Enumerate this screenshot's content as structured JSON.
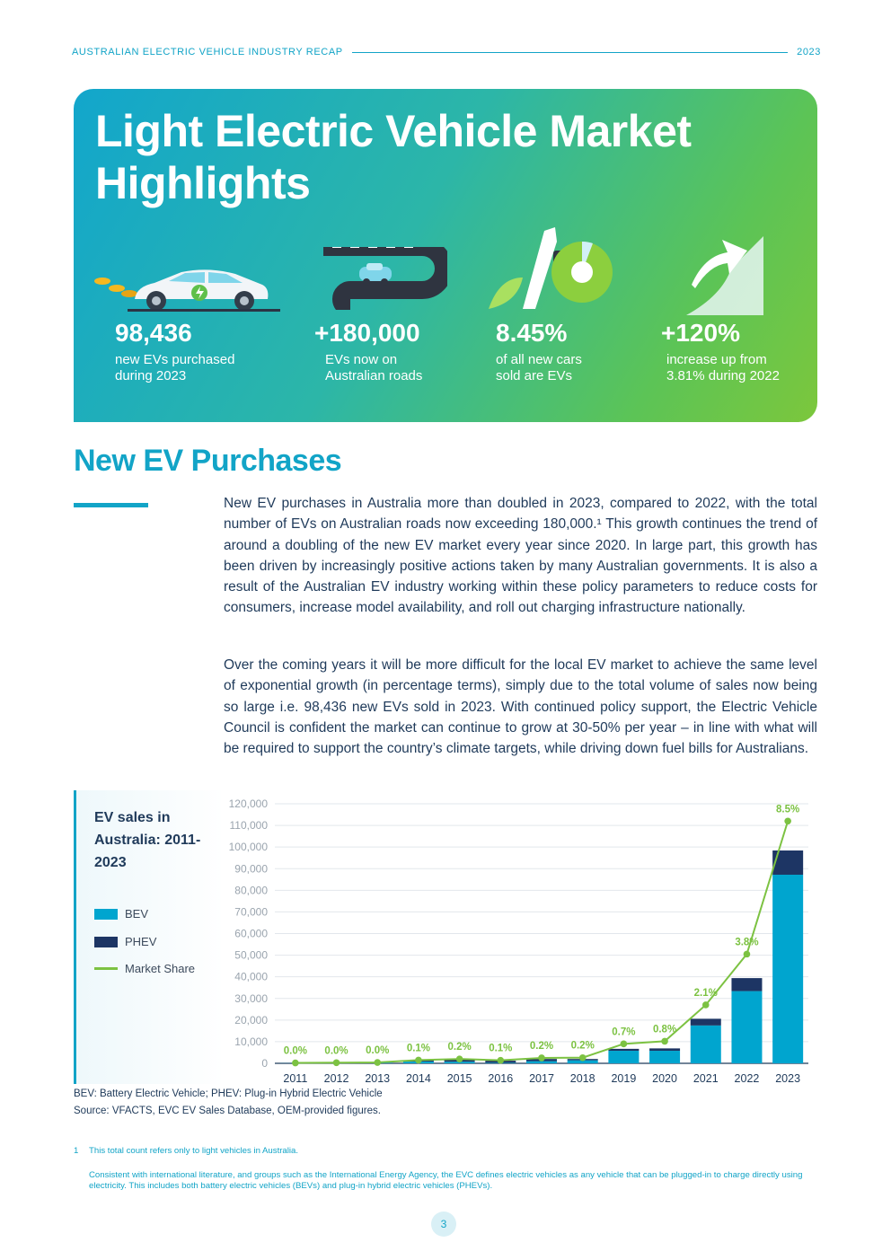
{
  "header": {
    "title": "AUSTRALIAN ELECTRIC VEHICLE INDUSTRY RECAP",
    "year": "2023"
  },
  "hero": {
    "title": "Light Electric Vehicle Market Highlights",
    "stats": [
      {
        "value": "98,436",
        "line1": "new EVs purchased",
        "line2": "during 2023",
        "icon": "car-icon"
      },
      {
        "value": "+180,000",
        "line1": "EVs now on",
        "line2": "Australian roads",
        "icon": "road-icon"
      },
      {
        "value": "8.45%",
        "line1": "of all new cars",
        "line2": "sold are EVs",
        "icon": "pie-chart-icon"
      },
      {
        "value": "+120%",
        "line1": "increase up from",
        "line2": "3.81% during 2022",
        "icon": "growth-arrow-icon"
      }
    ]
  },
  "section": {
    "title": "New EV Purchases",
    "para1": "New EV purchases in Australia more than doubled in 2023, compared to 2022, with the total number of EVs on Australian roads now exceeding 180,000.¹ This growth continues the trend of around a doubling of the new EV market every year since 2020. In large part, this growth has been driven by increasingly positive actions taken by many Australian governments. It is also a result of the Australian EV industry working within these policy parameters to reduce costs for consumers, increase model availability, and roll out charging infrastructure nationally.",
    "para2": "Over the coming years it will be more difficult for the local EV market to achieve the same level of exponential growth (in percentage terms), simply due to the total volume of sales now being so large i.e. 98,436 new EVs sold in 2023. With continued policy support, the Electric Vehicle Council is confident the market can continue to grow at 30-50% per year – in line with what will be required to support the country’s climate targets, while driving down fuel bills for Australians."
  },
  "chart_panel": {
    "title": "EV sales in Australia: 2011-2023",
    "legend": [
      {
        "label": "BEV",
        "color": "#00a5cf"
      },
      {
        "label": "PHEV",
        "color": "#1d3564"
      },
      {
        "label": "Market Share",
        "color": "#7cc242"
      }
    ]
  },
  "chart_data": {
    "type": "bar",
    "title": "EV sales in Australia: 2011-2023",
    "categories": [
      "2011",
      "2012",
      "2013",
      "2014",
      "2015",
      "2016",
      "2017",
      "2018",
      "2019",
      "2020",
      "2021",
      "2022",
      "2023"
    ],
    "stacked": true,
    "series": [
      {
        "name": "BEV",
        "color": "#00a5cf",
        "values": [
          50,
          250,
          200,
          800,
          750,
          250,
          1000,
          1400,
          5800,
          5800,
          17500,
          33400,
          87200
        ]
      },
      {
        "name": "PHEV",
        "color": "#1d3564",
        "values": [
          10,
          30,
          100,
          600,
          1000,
          950,
          1000,
          600,
          900,
          1100,
          3100,
          6000,
          11200
        ]
      }
    ],
    "line": {
      "name": "Market Share",
      "color": "#7cc242",
      "labels": [
        "0.0%",
        "0.0%",
        "0.0%",
        "0.1%",
        "0.2%",
        "0.1%",
        "0.2%",
        "0.2%",
        "0.7%",
        "0.8%",
        "2.1%",
        "3.8%",
        "8.5%"
      ],
      "plot_values": [
        200,
        300,
        400,
        1500,
        2000,
        1400,
        2500,
        2600,
        9000,
        10200,
        27000,
        50500,
        112000
      ]
    },
    "y_ticks": [
      "0",
      "10,000",
      "20,000",
      "30,000",
      "40,000",
      "50,000",
      "60,000",
      "70,000",
      "80,000",
      "90,000",
      "100,000",
      "110,000",
      "120,000"
    ],
    "ylim": [
      0,
      120000
    ],
    "grid": true,
    "legend": "left"
  },
  "notes": {
    "abbrev": "BEV: Battery Electric Vehicle; PHEV: Plug-in Hybrid Electric Vehicle",
    "source": "Source: VFACTS, EVC EV Sales Database, OEM-provided figures."
  },
  "footnotes": {
    "marker": "1",
    "note1": "This total count refers only to light vehicles in Australia.",
    "note2": "Consistent with international literature, and groups such as the International Energy Agency, the EVC defines electric vehicles as any vehicle that can be plugged-in to charge directly using electricity. This includes both battery electric vehicles (BEVs) and plug-in hybrid electric vehicles (PHEVs)."
  },
  "page": {
    "number": "3"
  }
}
